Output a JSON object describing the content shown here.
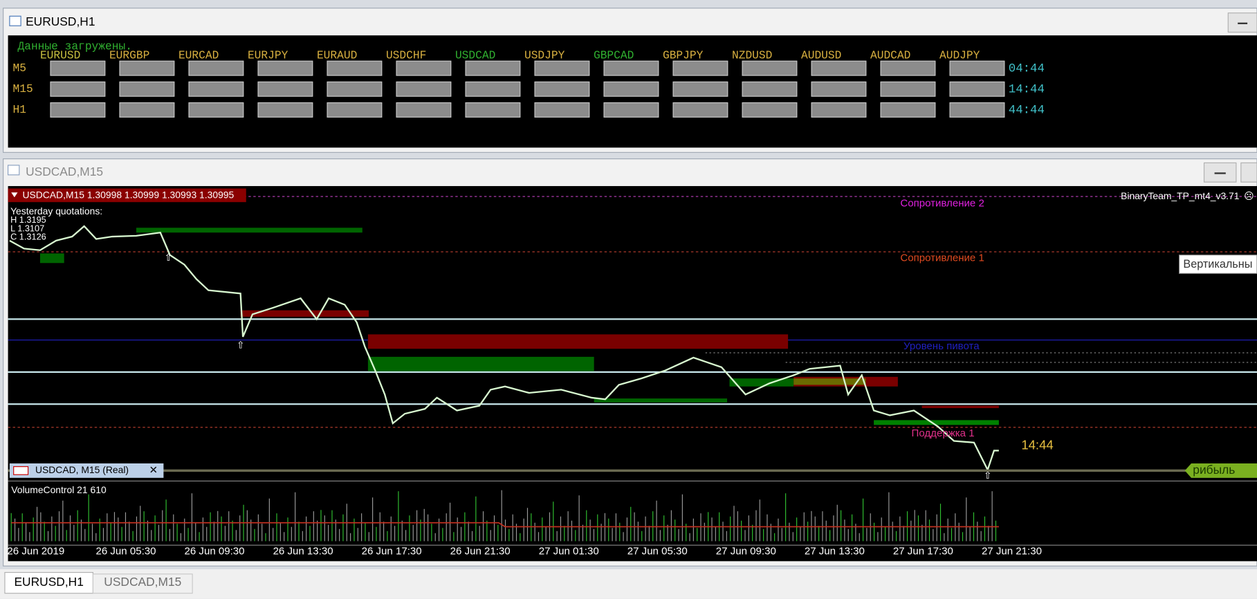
{
  "top_window": {
    "title": "EURUSD,H1",
    "status": "Данные загружены.",
    "symbols": [
      {
        "name": "EURUSD",
        "color": "#c8c040"
      },
      {
        "name": "EURGBP",
        "color": "#d8b040"
      },
      {
        "name": "EURCAD",
        "color": "#d8b040"
      },
      {
        "name": "EURJPY",
        "color": "#d8b040"
      },
      {
        "name": "EURAUD",
        "color": "#d8b040"
      },
      {
        "name": "USDCHF",
        "color": "#d8b040"
      },
      {
        "name": "USDCAD",
        "color": "#30b030"
      },
      {
        "name": "USDJPY",
        "color": "#d8b040"
      },
      {
        "name": "GBPCAD",
        "color": "#30b030"
      },
      {
        "name": "GBPJPY",
        "color": "#d8b040"
      },
      {
        "name": "NZDUSD",
        "color": "#d8b040"
      },
      {
        "name": "AUDUSD",
        "color": "#d8b040"
      },
      {
        "name": "AUDCAD",
        "color": "#d8b040"
      },
      {
        "name": "AUDJPY",
        "color": "#d8b040"
      }
    ],
    "rows": [
      {
        "timeframe": "M5",
        "time": "04:44"
      },
      {
        "timeframe": "M15",
        "time": "14:44"
      },
      {
        "timeframe": "H1",
        "time": "44:44"
      }
    ]
  },
  "chart_window": {
    "title": "USDCAD,M15",
    "header": "USDCAD,M15  1.30998 1.30999 1.30993 1.30995",
    "yesterday": [
      "Yesterday quotations:",
      "H 1.3195",
      "L 1.3107",
      "C 1.3126"
    ],
    "indicator": "BinaryTeam_TP_mt4_v3.71",
    "levels": [
      {
        "label": "Сопротивление 2",
        "color": "#e020e0"
      },
      {
        "label": "Сопротивление 1",
        "color": "#e04a20"
      },
      {
        "label": "Уровень пивота",
        "color": "#2020c0"
      },
      {
        "label": "Поддержка 1",
        "color": "#e0308a"
      }
    ],
    "timer": "14:44",
    "tooltip": "Вертикальны",
    "profit_tag": "рибыль",
    "subwindow_tag": "USDCAD, M15 (Real)",
    "volume_label": "VolumeControl 21 610",
    "time_labels": [
      "26 Jun 2019",
      "26 Jun 05:30",
      "26 Jun 09:30",
      "26 Jun 13:30",
      "26 Jun 17:30",
      "26 Jun 21:30",
      "27 Jun 01:30",
      "27 Jun 05:30",
      "27 Jun 09:30",
      "27 Jun 13:30",
      "27 Jun 17:30",
      "27 Jun 21:30"
    ]
  },
  "tabs": [
    "EURUSD,H1",
    "USDCAD,M15"
  ]
}
